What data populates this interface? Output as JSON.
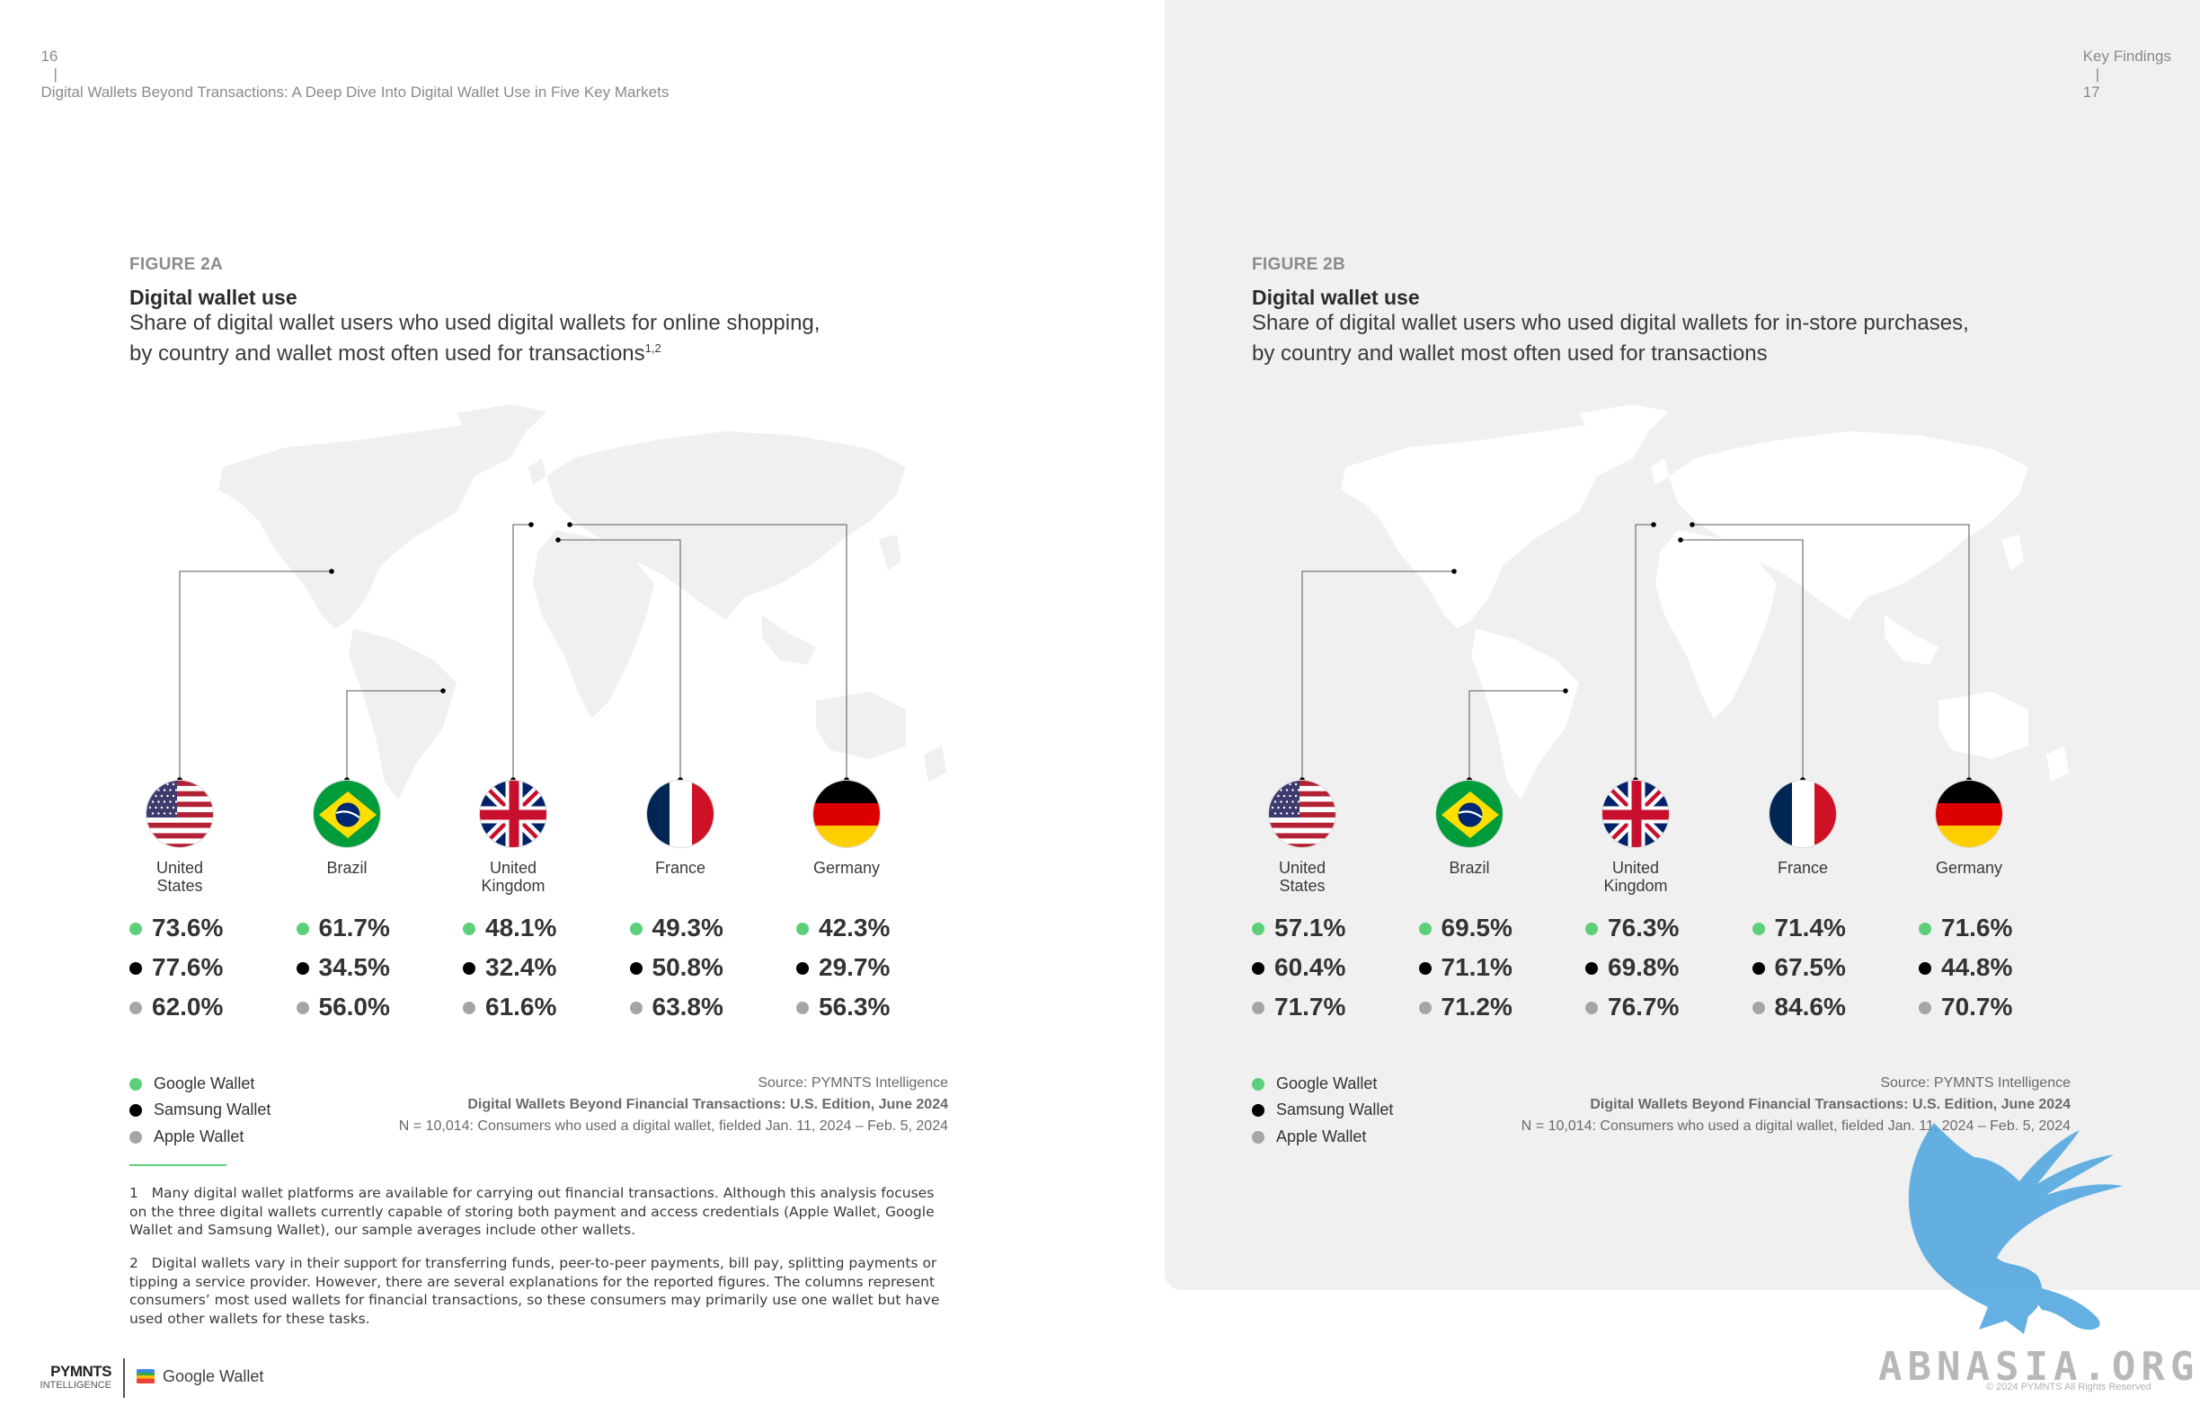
{
  "header": {
    "left_page_number": "16",
    "separator": "|",
    "left_title": "Digital Wallets Beyond Transactions: A Deep Dive Into Digital Wallet Use in Five Key Markets",
    "right_section": "Key Findings",
    "right_page_number": "17"
  },
  "countries": [
    {
      "label_line1": "United",
      "label_line2": "States"
    },
    {
      "label_line1": "Brazil",
      "label_line2": ""
    },
    {
      "label_line1": "United",
      "label_line2": "Kingdom"
    },
    {
      "label_line1": "France",
      "label_line2": ""
    },
    {
      "label_line1": "Germany",
      "label_line2": ""
    }
  ],
  "figures": [
    {
      "label": "FIGURE 2A",
      "title": "Digital wallet use",
      "subtitle_line1": "Share of digital wallet users who used digital wallets for online shopping,",
      "subtitle_line2": "by country and wallet most often used for transactions",
      "subtitle_sup": "1,2",
      "values": [
        {
          "google": "73.6%",
          "samsung": "77.6%",
          "apple": "62.0%"
        },
        {
          "google": "61.7%",
          "samsung": "34.5%",
          "apple": "56.0%"
        },
        {
          "google": "48.1%",
          "samsung": "32.4%",
          "apple": "61.6%"
        },
        {
          "google": "49.3%",
          "samsung": "50.8%",
          "apple": "63.8%"
        },
        {
          "google": "42.3%",
          "samsung": "29.7%",
          "apple": "56.3%"
        }
      ],
      "source_line1": "Source: PYMNTS Intelligence",
      "source_line2": "Digital Wallets Beyond Financial Transactions: U.S. Edition, June 2024",
      "source_line3": "N = 10,014: Consumers who used a digital wallet, fielded Jan. 11, 2024 – Feb. 5, 2024"
    },
    {
      "label": "FIGURE 2B",
      "title": "Digital wallet use",
      "subtitle_line1": "Share of digital wallet users who used digital wallets for in-store purchases,",
      "subtitle_line2": "by country and wallet most often used for transactions",
      "subtitle_sup": "",
      "values": [
        {
          "google": "57.1%",
          "samsung": "60.4%",
          "apple": "71.7%"
        },
        {
          "google": "69.5%",
          "samsung": "71.1%",
          "apple": "71.2%"
        },
        {
          "google": "76.3%",
          "samsung": "69.8%",
          "apple": "76.7%"
        },
        {
          "google": "71.4%",
          "samsung": "67.5%",
          "apple": "84.6%"
        },
        {
          "google": "71.6%",
          "samsung": "44.8%",
          "apple": "70.7%"
        }
      ],
      "source_line1": "Source: PYMNTS Intelligence",
      "source_line2": "Digital Wallets Beyond Financial Transactions: U.S. Edition, June 2024",
      "source_line3": "N = 10,014: Consumers who used a digital wallet, fielded Jan. 11, 2024 – Feb. 5, 2024"
    }
  ],
  "legend": {
    "google": "Google Wallet",
    "samsung": "Samsung Wallet",
    "apple": "Apple Wallet",
    "colors": {
      "google": "#5ccf7a",
      "samsung": "#000000",
      "apple": "#a5a5a5"
    }
  },
  "footnotes": {
    "fn1_num": "1",
    "fn1_lines": [
      "Many digital wallet platforms are available for carrying out financial transactions. Although this analysis focuses",
      "on the three digital wallets currently capable of storing both payment and access credentials (Apple Wallet, Google",
      "Wallet and Samsung Wallet), our sample averages include other wallets."
    ],
    "fn2_num": "2",
    "fn2_lines": [
      "Digital wallets vary in their support for transferring funds, peer-to-peer payments, bill pay, splitting payments or",
      "tipping a service provider. However, there are several explanations for the reported figures. The columns represent",
      "consumers’ most used wallets for financial transactions, so these consumers may primarily use one wallet but have",
      "used other wallets for these tasks."
    ]
  },
  "footer": {
    "pymnts": "PYMNTS",
    "intelligence": "INTELLIGENCE",
    "google_wallet": "Google Wallet",
    "watermark": "ABNASIA.ORG",
    "copyright": "© 2024 PYMNTS All Rights Reserved"
  }
}
